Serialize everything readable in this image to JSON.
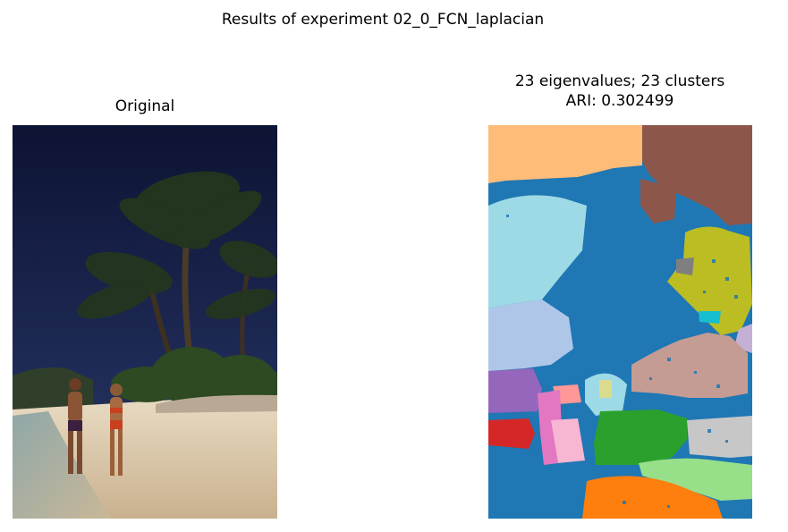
{
  "figure": {
    "suptitle": "Results of experiment 02_0_FCN_laplacian",
    "left_panel": {
      "title": "Original"
    },
    "right_panel": {
      "title_line1": "23 eigenvalues; 23 clusters",
      "title_line2": "ARI: 0.302499"
    }
  },
  "palette": {
    "tab_blue": "#1f77b4",
    "tab_orange": "#ff7f0e",
    "light_orange": "#ffbb78",
    "green": "#2ca02c",
    "light_green": "#98df8a",
    "red": "#d62728",
    "purple": "#9467bd",
    "light_purple": "#c5b0d5",
    "brown": "#8c564b",
    "light_brown": "#c49c94",
    "pink": "#e377c2",
    "light_pink": "#f7b6d2",
    "gray": "#7f7f7f",
    "light_gray": "#c7c7c7",
    "olive": "#bcbd22",
    "light_olive": "#dbdb8d",
    "cyan": "#17becf",
    "light_cyan": "#9edae5",
    "light_blue": "#aec7e8",
    "light_red": "#ff9896"
  }
}
